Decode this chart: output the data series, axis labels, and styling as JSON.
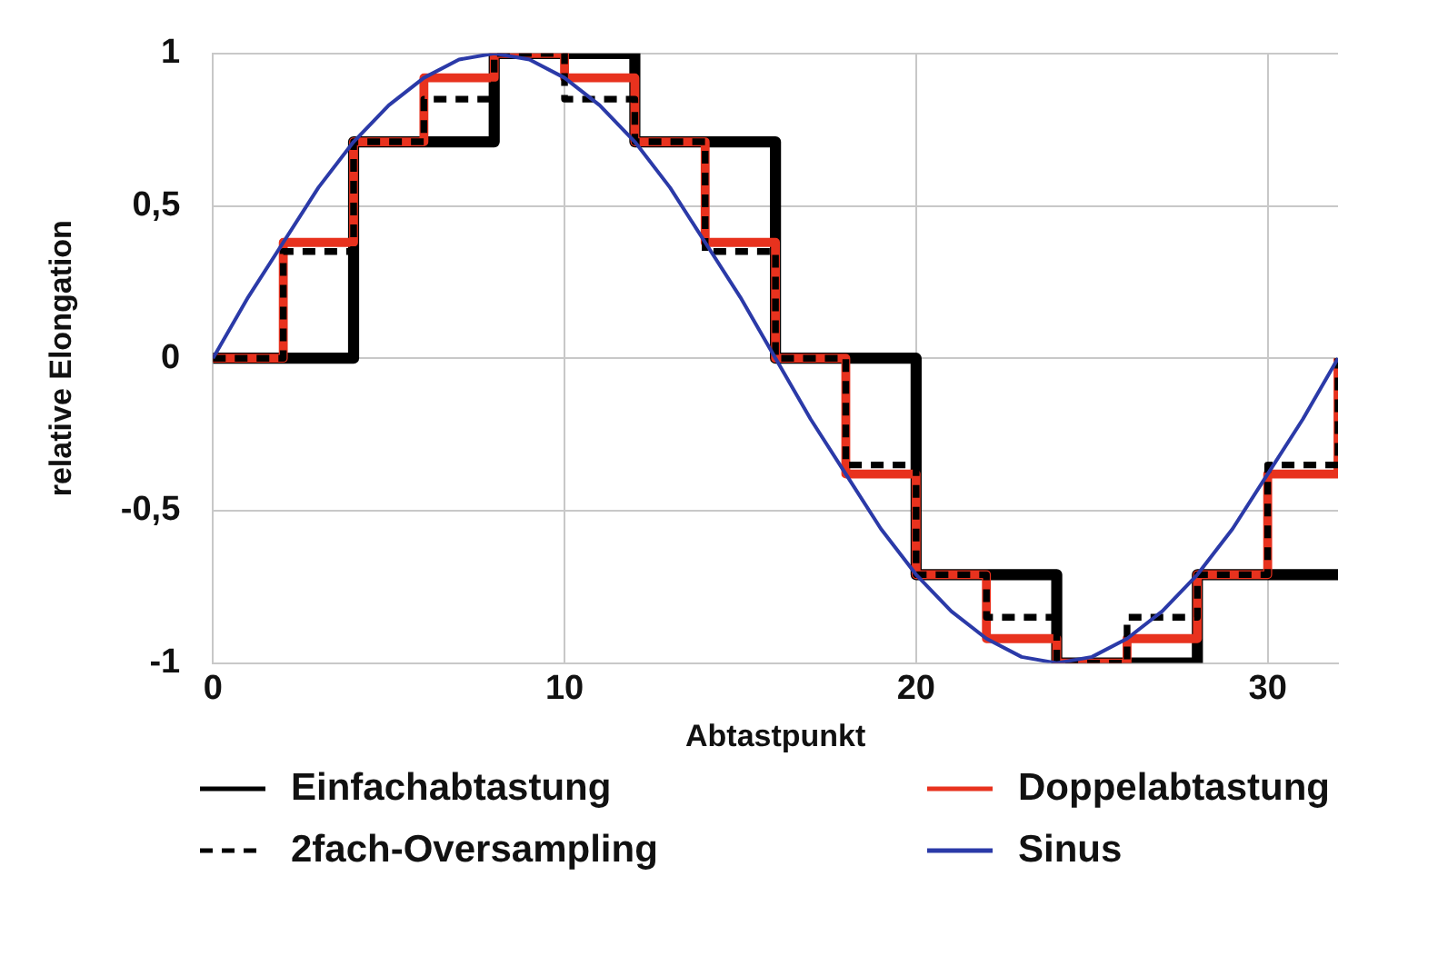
{
  "chart_data": {
    "type": "step",
    "xlabel": "Abtastpunkt",
    "ylabel": "relative Elongation",
    "xlim": [
      0,
      32
    ],
    "xticks": [
      0,
      10,
      20,
      30
    ],
    "ylim": [
      -1,
      1
    ],
    "yticks": [
      {
        "value": -1,
        "label": "-1"
      },
      {
        "value": -0.5,
        "label": "-0,5"
      },
      0,
      {
        "value": 0.5,
        "label": "0,5"
      },
      1
    ],
    "grid": true,
    "legend": "bottom",
    "marker": "none",
    "series": [
      {
        "name": "Einfachabtastung",
        "color": "#000000",
        "line_style": "solid",
        "x": [
          0,
          4,
          8,
          12,
          16,
          20,
          24,
          28,
          32
        ],
        "values": [
          0,
          0.71,
          1,
          0.71,
          0,
          -0.71,
          -1,
          -0.71,
          -0.71
        ]
      },
      {
        "name": "Doppelabtastung",
        "color": "#e8321e",
        "line_style": "solid",
        "x": [
          0,
          2,
          4,
          6,
          8,
          10,
          12,
          14,
          16,
          18,
          20,
          22,
          24,
          26,
          28,
          30,
          32
        ],
        "values": [
          0,
          0.38,
          0.71,
          0.92,
          1,
          0.92,
          0.71,
          0.38,
          0,
          -0.38,
          -0.71,
          -0.92,
          -1,
          -0.92,
          -0.71,
          -0.38,
          0
        ]
      },
      {
        "name": "2fach-Oversampling",
        "color": "#000000",
        "line_style": "dashed",
        "x": [
          0,
          2,
          4,
          6,
          8,
          10,
          12,
          14,
          16,
          18,
          20,
          22,
          24,
          26,
          28,
          30,
          32
        ],
        "values": [
          0,
          0.35,
          0.71,
          0.85,
          1,
          0.85,
          0.71,
          0.35,
          0,
          -0.35,
          -0.71,
          -0.85,
          -1,
          -0.85,
          -0.71,
          -0.35,
          0
        ]
      },
      {
        "name": "Sinus",
        "type": "line",
        "color": "#2b3aa8",
        "line_style": "solid",
        "x": [
          0,
          1,
          2,
          3,
          4,
          5,
          6,
          7,
          8,
          9,
          10,
          11,
          12,
          13,
          14,
          15,
          16,
          17,
          18,
          19,
          20,
          21,
          22,
          23,
          24,
          25,
          26,
          27,
          28,
          29,
          30,
          31,
          32
        ],
        "values": [
          0,
          0.2,
          0.38,
          0.56,
          0.71,
          0.83,
          0.92,
          0.98,
          1,
          0.98,
          0.92,
          0.83,
          0.71,
          0.56,
          0.38,
          0.2,
          0,
          -0.2,
          -0.38,
          -0.56,
          -0.71,
          -0.83,
          -0.92,
          -0.98,
          -1,
          -0.98,
          -0.92,
          -0.83,
          -0.71,
          -0.56,
          -0.38,
          -0.2,
          0
        ]
      }
    ]
  }
}
